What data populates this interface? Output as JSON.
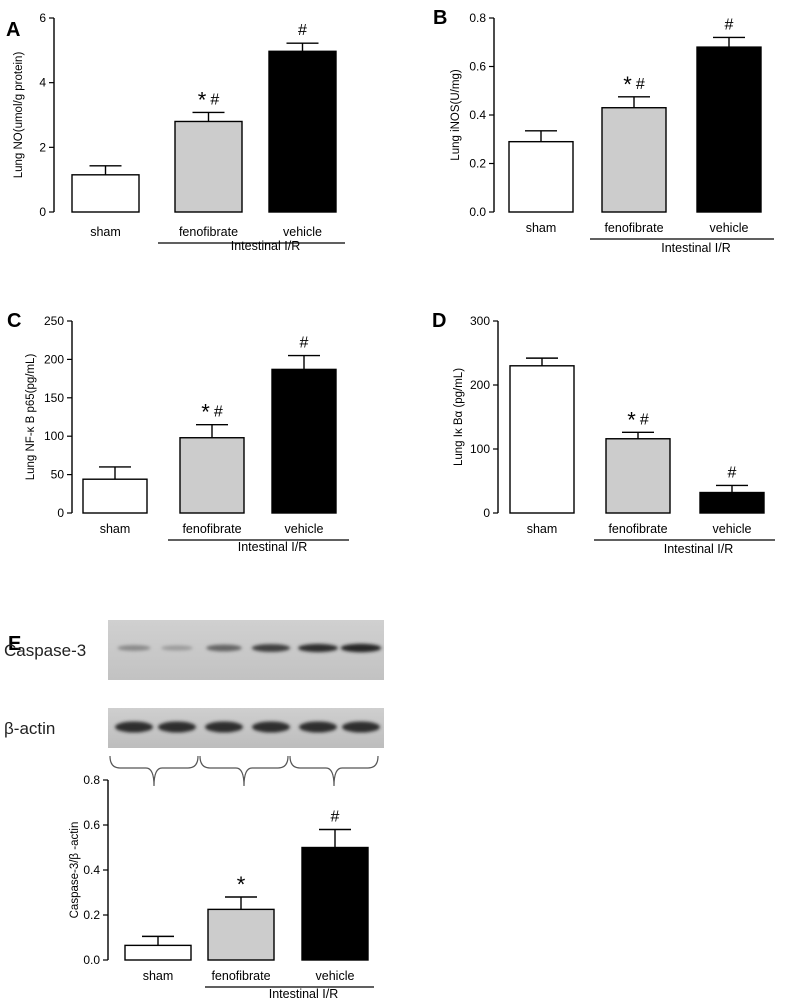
{
  "panels": [
    {
      "letter": "A",
      "chart_data": {
        "type": "bar",
        "categories": [
          "sham",
          "fenofibrate",
          "vehicle"
        ],
        "values": [
          1.15,
          2.8,
          4.97
        ],
        "errors": [
          0.28,
          0.28,
          0.25
        ],
        "bar_colors": [
          "#ffffff",
          "#cccccc",
          "#000000"
        ],
        "ylabel": "Lung NO(umol/g protein)",
        "ylim": [
          0,
          6
        ],
        "yticks": [
          0,
          2,
          4,
          6
        ],
        "ytick_labels": [
          "0",
          "2",
          "4",
          "6"
        ],
        "significance": [
          "",
          "* #",
          "#"
        ],
        "group_label": "Intestinal I/R"
      }
    },
    {
      "letter": "B",
      "chart_data": {
        "type": "bar",
        "categories": [
          "sham",
          "fenofibrate",
          "vehicle"
        ],
        "values": [
          0.29,
          0.43,
          0.68
        ],
        "errors": [
          0.045,
          0.045,
          0.04
        ],
        "bar_colors": [
          "#ffffff",
          "#cccccc",
          "#000000"
        ],
        "ylabel": "Lung iNOS(U/mg)",
        "ylim": [
          0,
          0.8
        ],
        "yticks": [
          0,
          0.2,
          0.4,
          0.6,
          0.8
        ],
        "ytick_labels": [
          "0.0",
          "0.2",
          "0.4",
          "0.6",
          "0.8"
        ],
        "significance": [
          "",
          "* #",
          "#"
        ],
        "group_label": "Intestinal I/R"
      }
    },
    {
      "letter": "C",
      "chart_data": {
        "type": "bar",
        "categories": [
          "sham",
          "fenofibrate",
          "vehicle"
        ],
        "values": [
          44,
          98,
          187
        ],
        "errors": [
          16,
          17,
          18
        ],
        "bar_colors": [
          "#ffffff",
          "#cccccc",
          "#000000"
        ],
        "ylabel": "Lung NF-κ B p65(pg/mL)",
        "ylim": [
          0,
          250
        ],
        "yticks": [
          0,
          50,
          100,
          150,
          200,
          250
        ],
        "ytick_labels": [
          "0",
          "50",
          "100",
          "150",
          "200",
          "250"
        ],
        "significance": [
          "",
          "* #",
          "#"
        ],
        "group_label": "Intestinal I/R"
      }
    },
    {
      "letter": "D",
      "chart_data": {
        "type": "bar",
        "categories": [
          "sham",
          "fenofibrate",
          "vehicle"
        ],
        "values": [
          230,
          116,
          32
        ],
        "errors": [
          12,
          10,
          11
        ],
        "bar_colors": [
          "#ffffff",
          "#cccccc",
          "#000000"
        ],
        "ylabel": "Lung Iκ Bα (pg/mL)",
        "ylim": [
          0,
          300
        ],
        "yticks": [
          0,
          100,
          200,
          300
        ],
        "ytick_labels": [
          "0",
          "100",
          "200",
          "300"
        ],
        "significance": [
          "",
          "* #",
          "#"
        ],
        "group_label": "Intestinal I/R"
      }
    },
    {
      "letter": "E",
      "blot": {
        "rows": [
          {
            "label": "Caspase-3",
            "band_intensity": [
              0.35,
              0.25,
              0.55,
              0.75,
              0.85,
              0.9
            ]
          },
          {
            "label": "β-actin",
            "band_intensity": [
              0.85,
              0.85,
              0.85,
              0.85,
              0.85,
              0.85
            ]
          }
        ]
      },
      "chart_data": {
        "type": "bar",
        "categories": [
          "sham",
          "fenofibrate",
          "vehicle"
        ],
        "values": [
          0.065,
          0.225,
          0.5
        ],
        "errors": [
          0.04,
          0.055,
          0.08
        ],
        "bar_colors": [
          "#ffffff",
          "#cccccc",
          "#000000"
        ],
        "ylabel": "Caspase-3/β -actin",
        "ylim": [
          0,
          0.8
        ],
        "yticks": [
          0,
          0.2,
          0.4,
          0.6,
          0.8
        ],
        "ytick_labels": [
          "0.0",
          "0.2",
          "0.4",
          "0.6",
          "0.8"
        ],
        "significance": [
          "",
          "*",
          "#"
        ],
        "group_label": "Intestinal I/R"
      }
    }
  ]
}
